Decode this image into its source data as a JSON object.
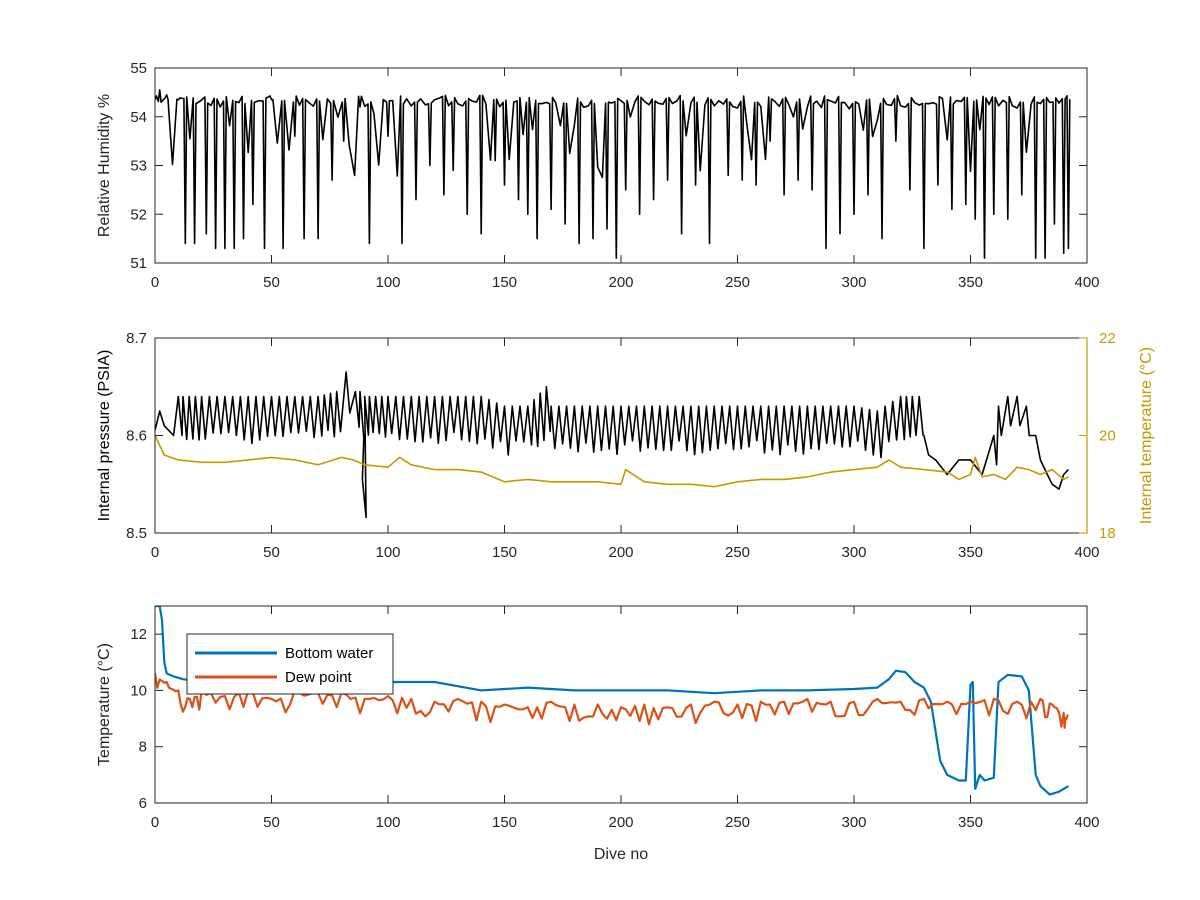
{
  "chart_data": [
    {
      "type": "line",
      "panel": "top",
      "xlim": [
        0,
        400
      ],
      "ylim": [
        51,
        55
      ],
      "xticks": [
        "0",
        "50",
        "100",
        "150",
        "200",
        "250",
        "300",
        "350",
        "400"
      ],
      "yticks": [
        "51",
        "52",
        "53",
        "54",
        "55"
      ],
      "xlabel": "",
      "ylabel": "Relative Humidity %",
      "series": [
        {
          "color": "#000000",
          "baseline": 54.35,
          "x": [
            0,
            2,
            5,
            10,
            13,
            17,
            22,
            26,
            30,
            34,
            38,
            42,
            47,
            50,
            55,
            60,
            64,
            70,
            76,
            81,
            88,
            92,
            100,
            106,
            112,
            118,
            124,
            128,
            134,
            140,
            146,
            150,
            156,
            160,
            164,
            170,
            176,
            182,
            188,
            194,
            198,
            202,
            208,
            214,
            220,
            226,
            232,
            238,
            246,
            252,
            258,
            264,
            270,
            276,
            282,
            288,
            294,
            300,
            306,
            312,
            318,
            324,
            330,
            336,
            342,
            348,
            352,
            356,
            360,
            366,
            372,
            378,
            382,
            386,
            390,
            392
          ],
          "y": [
            54.35,
            54.55,
            54.45,
            54.35,
            51.4,
            51.4,
            51.6,
            51.3,
            51.3,
            51.3,
            51.5,
            52.2,
            51.3,
            54.35,
            51.3,
            53.6,
            51.5,
            51.5,
            52.7,
            53.5,
            54.2,
            51.4,
            53.6,
            51.4,
            52.3,
            53.0,
            52.4,
            52.9,
            52.0,
            51.6,
            53.1,
            52.6,
            52.3,
            52.0,
            51.5,
            52.1,
            51.8,
            51.4,
            51.5,
            51.7,
            51.1,
            52.5,
            52.0,
            52.3,
            52.7,
            51.6,
            52.6,
            51.4,
            52.8,
            52.7,
            52.6,
            53.5,
            52.4,
            52.7,
            52.5,
            51.3,
            51.6,
            52.0,
            52.4,
            51.5,
            53.5,
            52.5,
            51.3,
            52.6,
            52.1,
            52.2,
            51.9,
            51.1,
            52.0,
            51.9,
            52.4,
            51.1,
            51.1,
            51.8,
            51.2,
            51.3
          ]
        }
      ]
    },
    {
      "type": "line",
      "panel": "middle",
      "xlim": [
        0,
        400
      ],
      "ylim": [
        8.5,
        8.7
      ],
      "ylim_right": [
        18,
        22
      ],
      "xticks": [
        "0",
        "50",
        "100",
        "150",
        "200",
        "250",
        "300",
        "350",
        "400"
      ],
      "yticks": [
        "8.5",
        "8.6",
        "8.7"
      ],
      "yticks_right": [
        "18",
        "20",
        "22"
      ],
      "xlabel": "",
      "ylabel": "Internal pressure (PSIA)",
      "ylabel_right": "Internal temperature (°C)",
      "right_axis_color": "#C49A00",
      "series": [
        {
          "axis": "left",
          "color": "#000000",
          "x": [
            0,
            2,
            4,
            8,
            10,
            12,
            20,
            30,
            40,
            50,
            60,
            70,
            78,
            82,
            86,
            88,
            89,
            90,
            92,
            100,
            110,
            120,
            130,
            140,
            150,
            160,
            168,
            170,
            180,
            190,
            200,
            210,
            220,
            230,
            240,
            250,
            260,
            270,
            280,
            290,
            300,
            310,
            320,
            325,
            328,
            330,
            332,
            335,
            340,
            345,
            350,
            355,
            360,
            362,
            366,
            370,
            374,
            378,
            380,
            385,
            388,
            390,
            392
          ],
          "y": [
            8.605,
            8.625,
            8.61,
            8.6,
            8.64,
            8.64,
            8.64,
            8.64,
            8.64,
            8.64,
            8.64,
            8.64,
            8.645,
            8.665,
            8.645,
            8.645,
            8.555,
            8.64,
            8.64,
            8.64,
            8.64,
            8.64,
            8.64,
            8.64,
            8.63,
            8.63,
            8.65,
            8.63,
            8.63,
            8.63,
            8.63,
            8.63,
            8.63,
            8.63,
            8.63,
            8.63,
            8.63,
            8.63,
            8.63,
            8.63,
            8.63,
            8.625,
            8.64,
            8.64,
            8.64,
            8.6,
            8.58,
            8.575,
            8.56,
            8.575,
            8.575,
            8.56,
            8.6,
            8.63,
            8.64,
            8.64,
            8.63,
            8.6,
            8.575,
            8.55,
            8.545,
            8.56,
            8.565
          ]
        },
        {
          "axis": "right",
          "color": "#C49A00",
          "x": [
            0,
            4,
            10,
            20,
            30,
            40,
            50,
            60,
            70,
            80,
            85,
            90,
            100,
            105,
            110,
            120,
            130,
            140,
            150,
            160,
            170,
            180,
            190,
            200,
            202,
            210,
            220,
            230,
            240,
            250,
            260,
            270,
            280,
            290,
            300,
            310,
            315,
            320,
            330,
            340,
            345,
            350,
            352,
            355,
            360,
            365,
            370,
            375,
            380,
            385,
            390,
            392
          ],
          "y": [
            20.0,
            19.6,
            19.5,
            19.45,
            19.45,
            19.5,
            19.55,
            19.5,
            19.4,
            19.55,
            19.5,
            19.4,
            19.35,
            19.55,
            19.4,
            19.3,
            19.3,
            19.25,
            19.05,
            19.1,
            19.05,
            19.05,
            19.05,
            19.0,
            19.3,
            19.05,
            19.0,
            19.0,
            18.95,
            19.05,
            19.1,
            19.1,
            19.15,
            19.25,
            19.3,
            19.35,
            19.5,
            19.35,
            19.3,
            19.25,
            19.1,
            19.2,
            19.55,
            19.15,
            19.2,
            19.1,
            19.35,
            19.3,
            19.2,
            19.3,
            19.1,
            19.15
          ]
        }
      ]
    },
    {
      "type": "line",
      "panel": "bottom",
      "xlim": [
        0,
        400
      ],
      "ylim": [
        6,
        13
      ],
      "xticks": [
        "0",
        "50",
        "100",
        "150",
        "200",
        "250",
        "300",
        "350",
        "400"
      ],
      "yticks": [
        "6",
        "8",
        "10",
        "12"
      ],
      "xlabel": "Dive no",
      "ylabel": "Temperature (°C)",
      "legend_position": "top-left",
      "series": [
        {
          "name": "Bottom water",
          "color": "#0072BD",
          "x": [
            0,
            2,
            3,
            4,
            5,
            8,
            12,
            20,
            40,
            60,
            80,
            100,
            120,
            140,
            150,
            160,
            180,
            200,
            220,
            240,
            250,
            260,
            280,
            300,
            310,
            315,
            318,
            322,
            326,
            330,
            333,
            337,
            340,
            345,
            348,
            350,
            351,
            352,
            354,
            356,
            360,
            362,
            366,
            372,
            375,
            378,
            380,
            384,
            388,
            392
          ],
          "y": [
            13.0,
            13.0,
            12.5,
            11.0,
            10.6,
            10.5,
            10.4,
            10.3,
            10.4,
            10.4,
            10.3,
            10.3,
            10.3,
            10.0,
            10.05,
            10.1,
            10.0,
            10.0,
            10.0,
            9.9,
            9.95,
            10.0,
            10.0,
            10.05,
            10.1,
            10.4,
            10.7,
            10.65,
            10.3,
            10.1,
            9.6,
            7.5,
            7.0,
            6.8,
            6.8,
            10.2,
            10.3,
            6.5,
            7.0,
            6.8,
            6.9,
            10.3,
            10.55,
            10.5,
            10.0,
            7.0,
            6.6,
            6.3,
            6.4,
            6.6
          ]
        },
        {
          "name": "Dew point",
          "color": "#D95319",
          "x": [
            0,
            5,
            10,
            15,
            20,
            30,
            40,
            50,
            60,
            70,
            80,
            90,
            100,
            110,
            120,
            130,
            140,
            150,
            160,
            170,
            180,
            190,
            200,
            210,
            220,
            230,
            240,
            250,
            260,
            270,
            280,
            290,
            300,
            310,
            320,
            330,
            340,
            350,
            360,
            370,
            380,
            385,
            390,
            392
          ],
          "y": [
            10.6,
            10.3,
            10.0,
            9.7,
            10.0,
            9.8,
            10.0,
            9.7,
            10.0,
            9.9,
            9.9,
            9.7,
            9.8,
            9.7,
            9.6,
            9.7,
            9.6,
            9.5,
            9.4,
            9.6,
            9.5,
            9.5,
            9.4,
            9.5,
            9.4,
            9.5,
            9.6,
            9.5,
            9.6,
            9.6,
            9.7,
            9.6,
            9.6,
            9.7,
            9.6,
            9.7,
            9.6,
            9.6,
            9.7,
            9.6,
            9.7,
            9.5,
            9.2,
            9.1
          ]
        }
      ]
    }
  ]
}
